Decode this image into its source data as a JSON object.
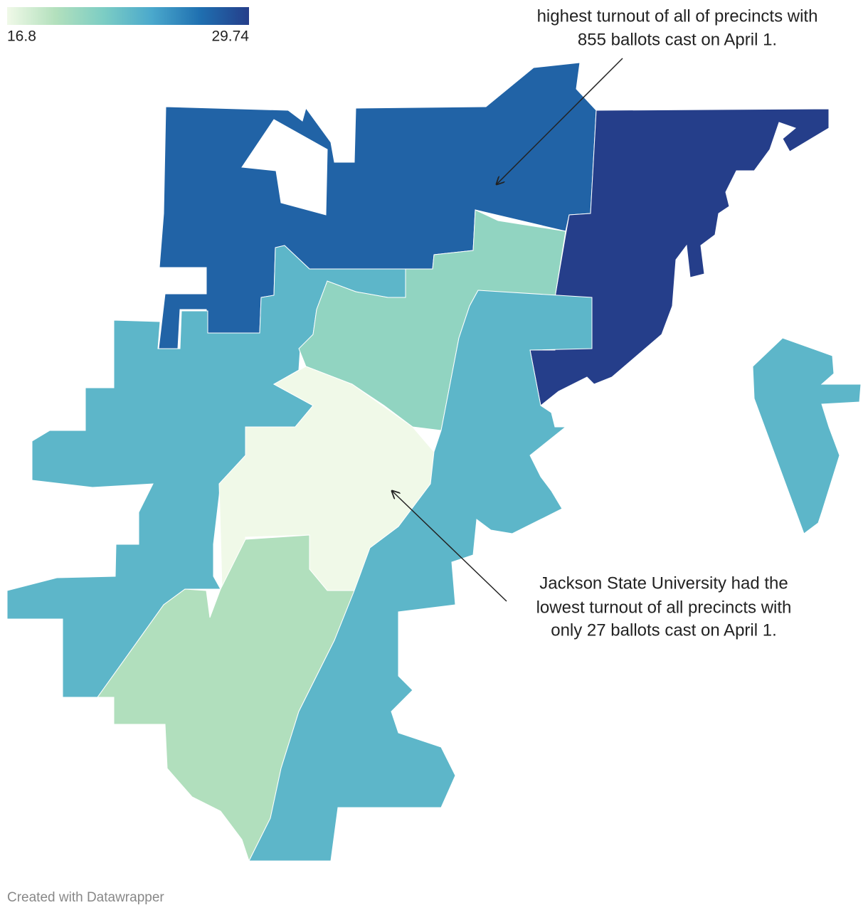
{
  "legend": {
    "min": 16.8,
    "max": 29.74,
    "colors": [
      "#f0f9e8",
      "#b3e0bd",
      "#7ccdc4",
      "#4aa8cc",
      "#1f6fb0",
      "#253e8a"
    ]
  },
  "regions": [
    {
      "value": 27.8
    },
    {
      "value": 29.74
    },
    {
      "value": 23.6
    },
    {
      "value": 23.6
    },
    {
      "value": 21
    },
    {
      "value": 16.8
    },
    {
      "value": 19.5
    },
    {
      "value": 23.6
    }
  ],
  "annotations": [
    {
      "lines": [
        "highest turnout of all of precincts with",
        "855 ballots cast on April 1."
      ]
    },
    {
      "lines": [
        "Jackson State University had the",
        "lowest turnout of all precincts with",
        "only 27 ballots cast on April 1."
      ]
    }
  ],
  "credit": "Created with Datawrapper"
}
